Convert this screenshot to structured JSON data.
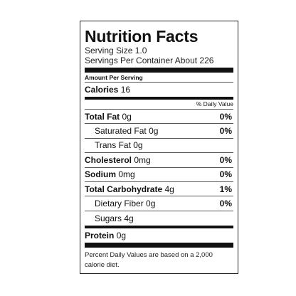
{
  "label": {
    "title": "Nutrition Facts",
    "serving_size": "Serving Size 1.0",
    "servings_per_container": "Servings Per Container About 226",
    "amount_per_serving": "Amount Per Serving",
    "calories_label": "Calories",
    "calories_value": "16",
    "daily_value_header": "% Daily Value",
    "nutrients": [
      {
        "name": "Total Fat",
        "amount": "0g",
        "pct": "0%"
      },
      {
        "name": "Saturated Fat",
        "amount": "0g",
        "pct": "0%"
      },
      {
        "name": "Trans Fat",
        "amount": "0g",
        "pct": ""
      },
      {
        "name": "Cholesterol",
        "amount": "0mg",
        "pct": "0%"
      },
      {
        "name": "Sodium",
        "amount": "0mg",
        "pct": "0%"
      },
      {
        "name": "Total Carbohydrate",
        "amount": "4g",
        "pct": "1%"
      },
      {
        "name": "Dietary Fiber",
        "amount": "0g",
        "pct": "0%"
      },
      {
        "name": "Sugars",
        "amount": "4g",
        "pct": ""
      }
    ],
    "protein_label": "Protein",
    "protein_amount": "0g",
    "footnote": "Percent Daily Values are based on a 2,000 calorie diet."
  }
}
